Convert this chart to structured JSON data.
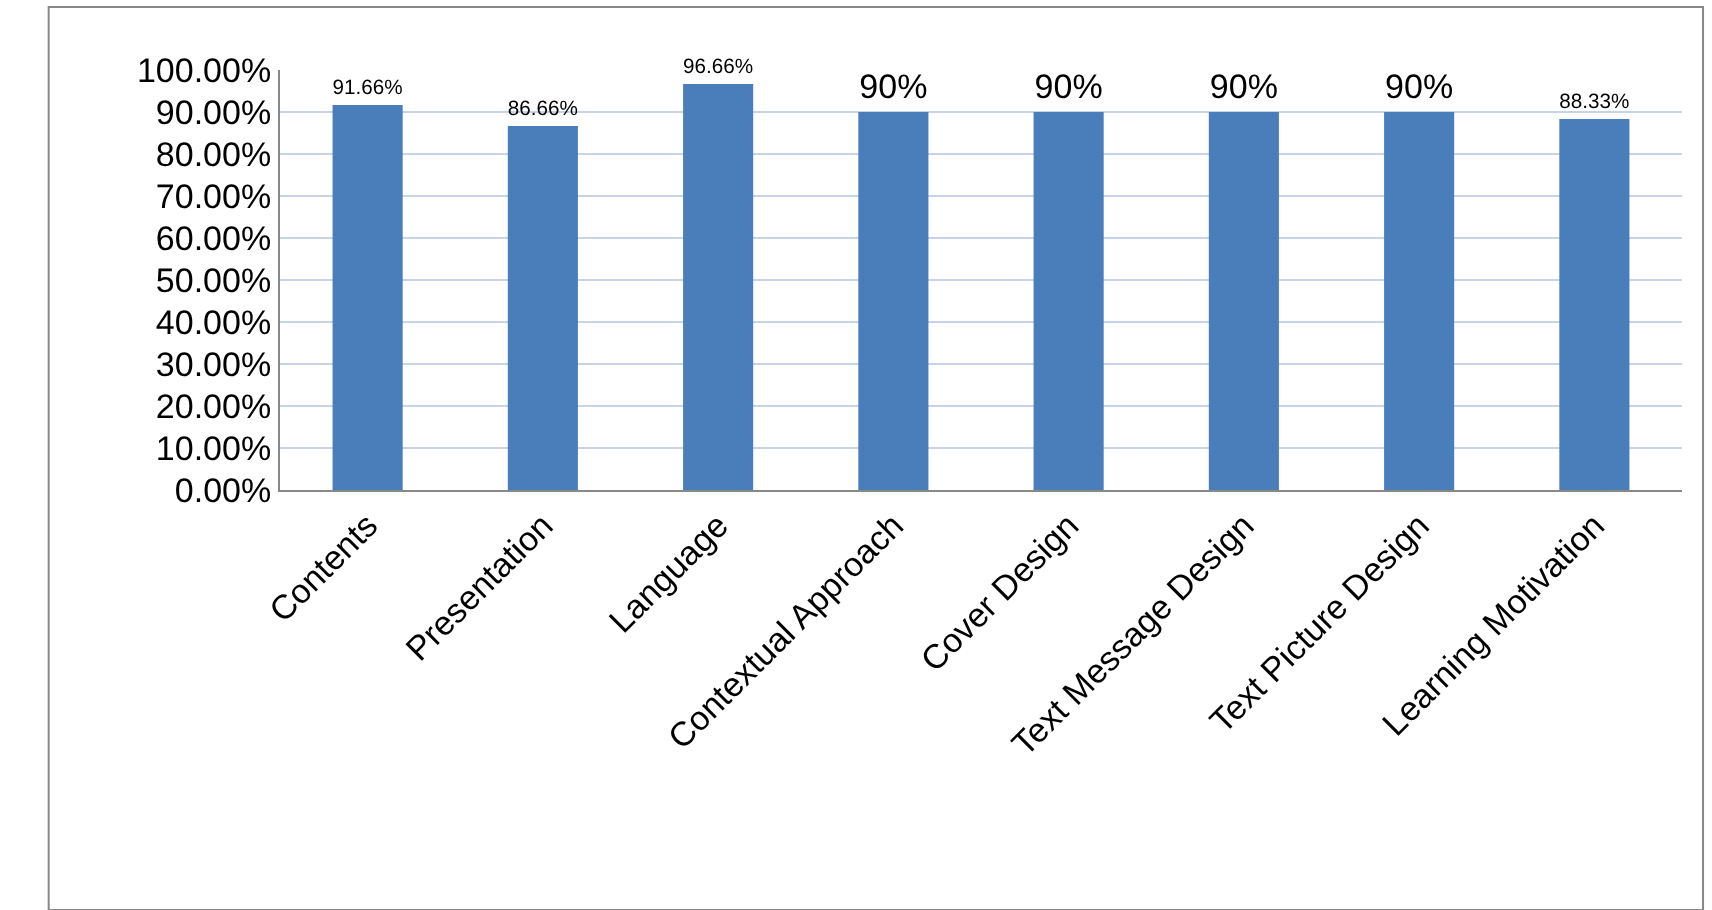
{
  "chart_data": {
    "type": "bar",
    "categories": [
      "Contents",
      "Presentation",
      "Language",
      "Contextual Approach",
      "Cover Design",
      "Text Message Design",
      "Text Picture Design",
      "Learning Motivation"
    ],
    "values": [
      91.66,
      86.66,
      96.66,
      90,
      90,
      90,
      90,
      88.33
    ],
    "value_labels": [
      "91.66%",
      "86.66%",
      "96.66%",
      "90%",
      "90%",
      "90%",
      "90%",
      "88.33%"
    ],
    "color": "#4a7ebb",
    "ylim": [
      0,
      100
    ],
    "yticks": [
      {
        "value": 0,
        "label": "0.00%"
      },
      {
        "value": 10,
        "label": "10.00%"
      },
      {
        "value": 20,
        "label": "20.00%"
      },
      {
        "value": 30,
        "label": "30.00%"
      },
      {
        "value": 40,
        "label": "40.00%"
      },
      {
        "value": 50,
        "label": "50.00%"
      },
      {
        "value": 60,
        "label": "60.00%"
      },
      {
        "value": 70,
        "label": "70.00%"
      },
      {
        "value": 80,
        "label": "80.00%"
      },
      {
        "value": 90,
        "label": "90.00%"
      },
      {
        "value": 100,
        "label": "100.00%"
      }
    ],
    "grid": "y"
  }
}
